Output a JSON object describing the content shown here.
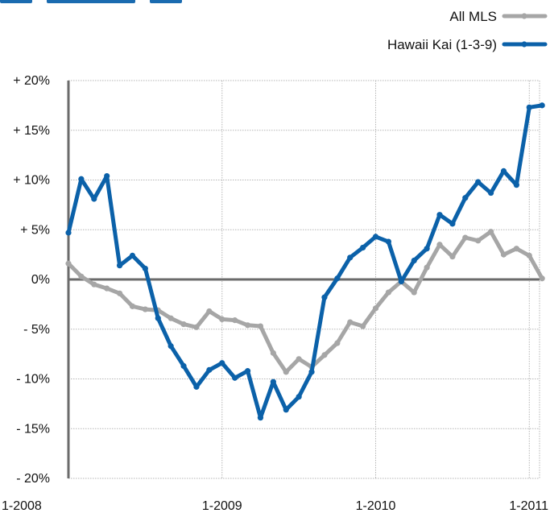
{
  "chart_data": {
    "type": "line",
    "xlabel": "",
    "ylabel": "",
    "ylim": [
      -20,
      20
    ],
    "y_ticks": [
      -20,
      -15,
      -10,
      -5,
      0,
      5,
      10,
      15,
      20
    ],
    "y_tick_labels": [
      "- 20%",
      "- 15%",
      "- 10%",
      "- 5%",
      "0%",
      "+ 5%",
      "+ 10%",
      "+ 15%",
      "+ 20%"
    ],
    "x_ticks": [
      0,
      12,
      24,
      36
    ],
    "x_tick_labels": [
      "1-2008",
      "1-2009",
      "1-2010",
      "1-2011"
    ],
    "xlim": [
      0,
      37
    ],
    "grid": true,
    "legend_position": "top-right",
    "series": [
      {
        "name": "All MLS",
        "color": "#a6a6a6",
        "values": [
          1.6,
          0.3,
          -0.5,
          -0.9,
          -1.4,
          -2.7,
          -3.0,
          -3.1,
          -3.9,
          -4.5,
          -4.8,
          -3.2,
          -4.0,
          -4.1,
          -4.6,
          -4.7,
          -7.4,
          -9.3,
          -8.0,
          -8.8,
          -7.6,
          -6.4,
          -4.3,
          -4.7,
          -2.9,
          -1.3,
          -0.2,
          -1.3,
          1.2,
          3.5,
          2.3,
          4.2,
          3.9,
          4.8,
          2.5,
          3.1,
          2.4,
          0.1
        ]
      },
      {
        "name": "Hawaii Kai (1-3-9)",
        "color": "#0b61a9",
        "values": [
          4.7,
          10.1,
          8.1,
          10.4,
          1.4,
          2.4,
          1.1,
          -3.9,
          -6.7,
          -8.7,
          -10.8,
          -9.1,
          -8.4,
          -9.9,
          -9.2,
          -13.9,
          -10.3,
          -13.1,
          -11.8,
          -9.3,
          -1.8,
          0.1,
          2.2,
          3.2,
          4.3,
          3.8,
          -0.2,
          1.9,
          3.1,
          6.5,
          5.6,
          8.2,
          9.8,
          8.7,
          10.9,
          9.5,
          17.3,
          17.5
        ]
      }
    ]
  }
}
